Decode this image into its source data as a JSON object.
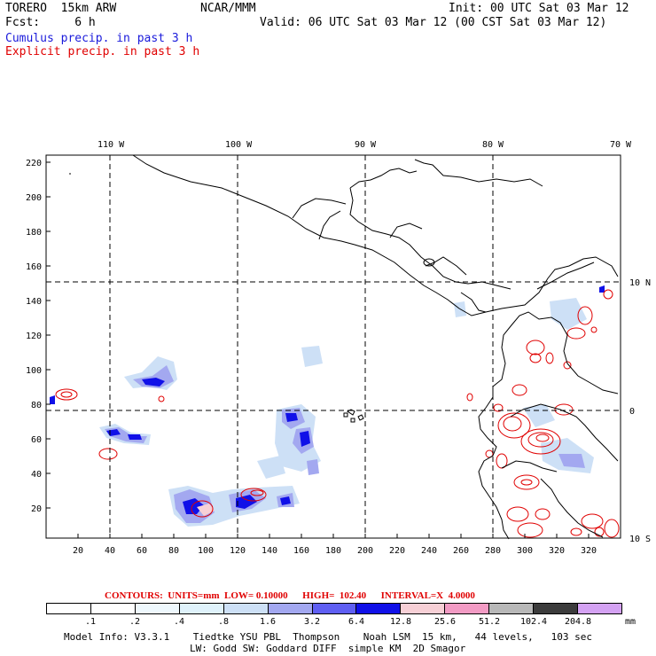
{
  "header": {
    "model": "TORERO  15km ARW",
    "org": "NCAR/MMM",
    "init": "Init: 00 UTC Sat 03 Mar 12",
    "fcst": "Fcst:     6 h",
    "valid": "Valid: 06 UTC Sat 03 Mar 12 (00 CST Sat 03 Mar 12)",
    "legend_cumulus": "Cumulus precip. in past 3 h",
    "legend_explicit": "Explicit precip. in past 3 h"
  },
  "colors": {
    "cumulus": "#1a1adb",
    "explicit": "#e00000",
    "coast": "#000000",
    "grid": "#000000"
  },
  "map": {
    "lon_labels": [
      "110 W",
      "100 W",
      "90 W",
      "80 W",
      "70 W"
    ],
    "lat_labels": [
      "10 N",
      "0",
      "10 S"
    ],
    "x_ticks": [
      "20",
      "40",
      "60",
      "80",
      "100",
      "120",
      "140",
      "160",
      "180",
      "200",
      "220",
      "240",
      "260",
      "280",
      "300",
      "320"
    ],
    "y_ticks": [
      "20",
      "40",
      "60",
      "80",
      "100",
      "120",
      "140",
      "160",
      "180",
      "200",
      "220"
    ]
  },
  "contours": {
    "info": "CONTOURS:  UNITS=mm  LOW= 0.10000      HIGH=  102.40      INTERVAL=X  4.0000"
  },
  "colorbar": {
    "labels": [
      ".1",
      ".2",
      ".4",
      ".8",
      "1.6",
      "3.2",
      "6.4",
      "12.8",
      "25.6",
      "51.2",
      "102.4",
      "204.8"
    ],
    "unit": "mm",
    "colors": [
      "#ffffff",
      "#ffffff",
      "#eef8fd",
      "#dff2fb",
      "#cde0f6",
      "#a3a8f0",
      "#5f5ff3",
      "#1010e8",
      "#f7d0d6",
      "#f29bc4",
      "#b8b8b8",
      "#3c3c3c",
      "#d4a2f3"
    ]
  },
  "footer": {
    "line1": "Model Info: V3.3.1    Tiedtke YSU PBL  Thompson    Noah LSM  15 km,   44 levels,   103 sec",
    "line2": "LW: Godd SW: Goddard DIFF  simple KM  2D Smagor"
  }
}
